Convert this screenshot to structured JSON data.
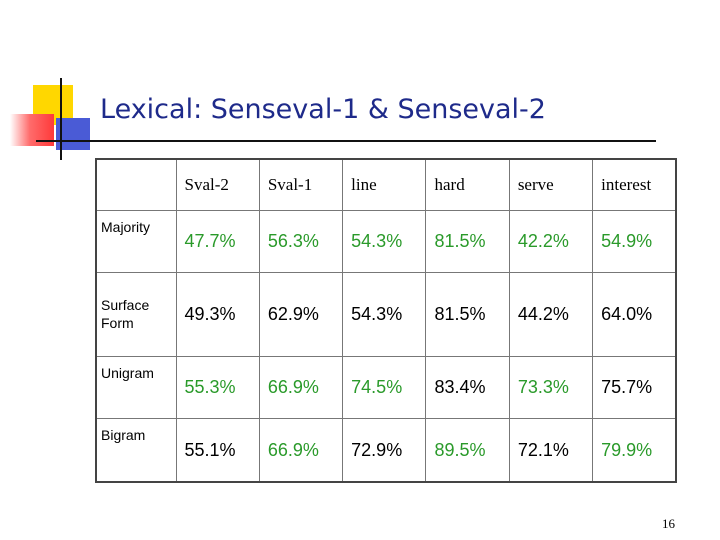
{
  "slide": {
    "title": "Lexical: Senseval-1 & Senseval-2",
    "page_number": "16"
  },
  "colors": {
    "title": "#1e2a8a",
    "green_value": "#2a9a2a",
    "black_value": "#000000"
  },
  "table": {
    "headers": [
      "",
      "Sval-2",
      "Sval-1",
      "line",
      "hard",
      "serve",
      "interest"
    ],
    "rows": [
      {
        "label": "Majority",
        "cells": [
          {
            "text": "47.7%",
            "color": "#2a9a2a"
          },
          {
            "text": "56.3%",
            "color": "#2a9a2a"
          },
          {
            "text": "54.3%",
            "color": "#2a9a2a"
          },
          {
            "text": "81.5%",
            "color": "#2a9a2a"
          },
          {
            "text": "42.2%",
            "color": "#2a9a2a"
          },
          {
            "text": "54.9%",
            "color": "#2a9a2a"
          }
        ]
      },
      {
        "label": "Surface Form",
        "cells": [
          {
            "text": "49.3%",
            "color": "#000000"
          },
          {
            "text": "62.9%",
            "color": "#000000"
          },
          {
            "text": "54.3%",
            "color": "#000000"
          },
          {
            "text": "81.5%",
            "color": "#000000"
          },
          {
            "text": "44.2%",
            "color": "#000000"
          },
          {
            "text": "64.0%",
            "color": "#000000"
          }
        ]
      },
      {
        "label": "Unigram",
        "cells": [
          {
            "text": "55.3%",
            "color": "#2a9a2a"
          },
          {
            "text": "66.9%",
            "color": "#2a9a2a"
          },
          {
            "text": "74.5%",
            "color": "#2a9a2a"
          },
          {
            "text": "83.4%",
            "color": "#000000"
          },
          {
            "text": "73.3%",
            "color": "#2a9a2a"
          },
          {
            "text": "75.7%",
            "color": "#000000"
          }
        ]
      },
      {
        "label": "Bigram",
        "cells": [
          {
            "text": "55.1%",
            "color": "#000000"
          },
          {
            "text": "66.9%",
            "color": "#2a9a2a"
          },
          {
            "text": "72.9%",
            "color": "#000000"
          },
          {
            "text": "89.5%",
            "color": "#2a9a2a"
          },
          {
            "text": "72.1%",
            "color": "#000000"
          },
          {
            "text": "79.9%",
            "color": "#2a9a2a"
          }
        ]
      }
    ]
  }
}
